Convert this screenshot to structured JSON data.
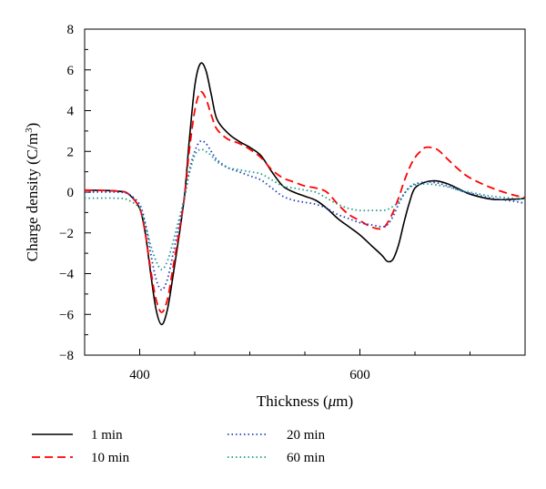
{
  "chart_data": {
    "type": "line",
    "xlabel": "Thickness (",
    "xlabel_symbol": "μ",
    "xlabel_unit": "m)",
    "ylabel": "Charge density (C/m",
    "ylabel_exp": "3",
    "ylabel_close": ")",
    "xlim": [
      350,
      750
    ],
    "ylim": [
      -8,
      8
    ],
    "x_ticks": [
      400,
      600
    ],
    "x_minor_ticks": [
      350,
      450,
      500,
      550,
      650,
      700,
      750
    ],
    "y_ticks": [
      8,
      6,
      4,
      2,
      0,
      -2,
      -4,
      -6,
      -8
    ],
    "y_tick_labels": [
      "8",
      "6",
      "4",
      "2",
      "0",
      "−2",
      "−4",
      "−6",
      "−8"
    ],
    "grid": false,
    "legend_position": "bottom",
    "series": [
      {
        "name": "1 min",
        "color": "#000000",
        "dash": "solid",
        "x": [
          350,
          380,
          390,
          400,
          405,
          410,
          415,
          420,
          425,
          430,
          440,
          445,
          450,
          455,
          460,
          465,
          470,
          480,
          490,
          500,
          510,
          520,
          530,
          540,
          550,
          560,
          570,
          580,
          590,
          600,
          610,
          620,
          625,
          630,
          635,
          640,
          645,
          650,
          660,
          670,
          680,
          690,
          700,
          720,
          740,
          750
        ],
        "y": [
          0.1,
          0.05,
          -0.1,
          -0.8,
          -2.0,
          -4.0,
          -5.8,
          -6.5,
          -5.8,
          -4.2,
          -0.5,
          2.5,
          5.2,
          6.3,
          6.0,
          4.8,
          3.6,
          2.9,
          2.5,
          2.2,
          1.8,
          1.0,
          0.3,
          0.0,
          -0.2,
          -0.4,
          -0.8,
          -1.3,
          -1.7,
          -2.1,
          -2.6,
          -3.1,
          -3.4,
          -3.3,
          -2.6,
          -1.5,
          -0.5,
          0.2,
          0.5,
          0.55,
          0.4,
          0.15,
          -0.1,
          -0.35,
          -0.35,
          -0.3
        ]
      },
      {
        "name": "10 min",
        "color": "#ff0000",
        "dash": "dashed",
        "x": [
          350,
          380,
          390,
          400,
          405,
          410,
          415,
          420,
          425,
          430,
          440,
          445,
          450,
          455,
          460,
          465,
          470,
          480,
          490,
          500,
          510,
          520,
          530,
          540,
          550,
          560,
          570,
          580,
          590,
          600,
          610,
          620,
          625,
          630,
          635,
          640,
          645,
          650,
          655,
          660,
          670,
          680,
          690,
          700,
          720,
          740,
          750
        ],
        "y": [
          0.1,
          0.05,
          -0.1,
          -0.8,
          -2.0,
          -3.8,
          -5.3,
          -5.9,
          -5.3,
          -3.8,
          -0.5,
          2.0,
          4.0,
          4.9,
          4.6,
          3.8,
          3.1,
          2.6,
          2.4,
          2.1,
          1.7,
          1.1,
          0.7,
          0.5,
          0.3,
          0.2,
          0.0,
          -0.6,
          -1.1,
          -1.4,
          -1.7,
          -1.8,
          -1.5,
          -1.0,
          -0.3,
          0.5,
          1.2,
          1.7,
          2.0,
          2.2,
          2.1,
          1.6,
          1.1,
          0.7,
          0.2,
          -0.15,
          -0.25
        ]
      },
      {
        "name": "20 min",
        "color": "#1f3fbf",
        "dash": "dotted",
        "x": [
          350,
          380,
          390,
          400,
          405,
          410,
          415,
          420,
          425,
          430,
          440,
          445,
          450,
          455,
          460,
          465,
          470,
          480,
          490,
          500,
          510,
          520,
          530,
          540,
          550,
          560,
          570,
          580,
          590,
          600,
          610,
          620,
          625,
          630,
          635,
          640,
          645,
          650,
          660,
          670,
          680,
          690,
          700,
          720,
          740,
          750
        ],
        "y": [
          0.0,
          0.0,
          -0.1,
          -0.6,
          -1.5,
          -3.0,
          -4.3,
          -4.8,
          -4.3,
          -3.1,
          -0.5,
          1.0,
          2.0,
          2.5,
          2.4,
          2.0,
          1.6,
          1.2,
          1.0,
          0.8,
          0.6,
          0.2,
          -0.2,
          -0.4,
          -0.5,
          -0.6,
          -0.8,
          -1.1,
          -1.3,
          -1.5,
          -1.6,
          -1.7,
          -1.6,
          -1.2,
          -0.6,
          -0.1,
          0.25,
          0.4,
          0.5,
          0.45,
          0.3,
          0.1,
          -0.05,
          -0.3,
          -0.45,
          -0.55
        ]
      },
      {
        "name": "60 min",
        "color": "#1f9a8a",
        "dash": "dotted",
        "x": [
          350,
          380,
          390,
          400,
          405,
          410,
          415,
          420,
          425,
          430,
          440,
          445,
          450,
          455,
          460,
          465,
          470,
          480,
          490,
          500,
          510,
          520,
          530,
          540,
          550,
          560,
          570,
          580,
          590,
          600,
          610,
          620,
          625,
          630,
          635,
          640,
          645,
          650,
          660,
          670,
          680,
          690,
          700,
          720,
          740,
          750
        ],
        "y": [
          -0.3,
          -0.3,
          -0.4,
          -0.8,
          -1.6,
          -2.6,
          -3.4,
          -3.8,
          -3.4,
          -2.5,
          -0.4,
          0.9,
          1.8,
          2.1,
          2.0,
          1.8,
          1.5,
          1.2,
          1.1,
          1.0,
          0.9,
          0.6,
          0.3,
          0.2,
          0.1,
          0.0,
          -0.3,
          -0.6,
          -0.8,
          -0.9,
          -0.9,
          -0.9,
          -0.85,
          -0.7,
          -0.5,
          -0.1,
          0.2,
          0.35,
          0.4,
          0.35,
          0.25,
          0.1,
          0.0,
          -0.2,
          -0.3,
          -0.35
        ]
      }
    ]
  }
}
